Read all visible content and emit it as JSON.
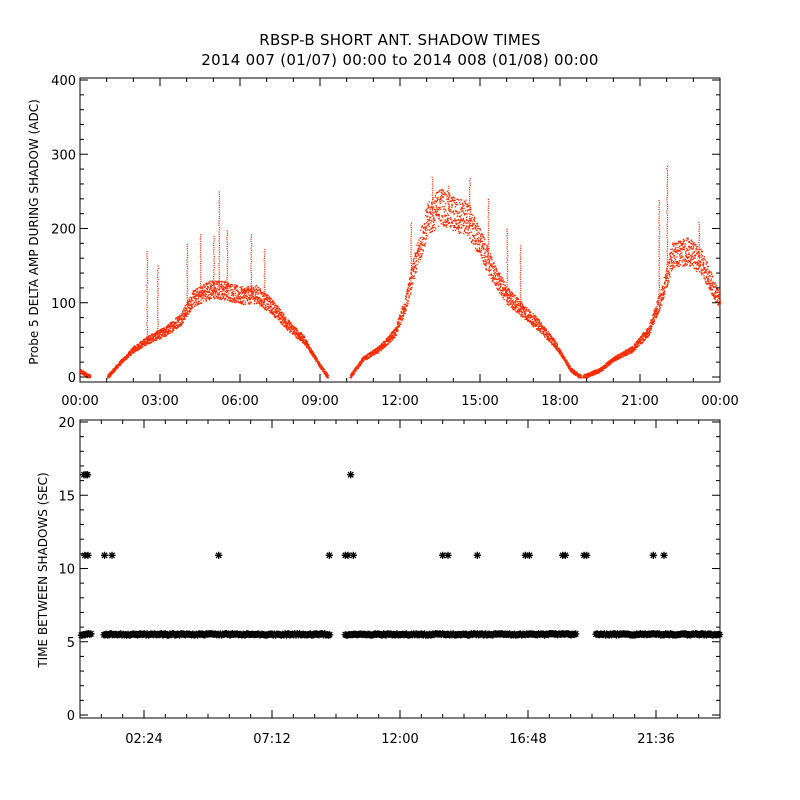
{
  "title_line1": "RBSP-B SHORT ANT. SHADOW TIMES",
  "title_line2": "2014 007 (01/07) 00:00 to 2014 008 (01/08) 00:00",
  "chart_data": [
    {
      "type": "scatter",
      "color": "#ff2a00",
      "ylabel": "Probe 5 DELTA AMP DURING SHADOW (ADC)",
      "xlabel": "",
      "ylim": [
        0,
        400
      ],
      "xlim_hours": [
        0,
        24
      ],
      "yticks": [
        "0",
        "100",
        "200",
        "300",
        "400"
      ],
      "xtick_labels": [
        "00:00",
        "03:00",
        "06:00",
        "09:00",
        "12:00",
        "15:00",
        "18:00",
        "21:00",
        "00:00"
      ],
      "envelope_hours": [
        0.0,
        0.4,
        1.0,
        1.5,
        2.0,
        2.6,
        3.2,
        3.8,
        4.2,
        4.8,
        5.4,
        6.0,
        6.6,
        7.2,
        7.8,
        8.4,
        9.0,
        9.3,
        10.1,
        10.6,
        11.2,
        11.8,
        12.2,
        12.6,
        13.0,
        13.5,
        14.0,
        14.5,
        15.0,
        15.5,
        16.0,
        16.6,
        17.2,
        17.8,
        18.4,
        18.8,
        19.5,
        20.0,
        20.7,
        21.3,
        21.8,
        22.2,
        22.8,
        23.3,
        24.0
      ],
      "envelope_values": [
        8,
        0,
        0,
        20,
        38,
        52,
        62,
        80,
        105,
        118,
        118,
        110,
        112,
        95,
        70,
        50,
        15,
        0,
        0,
        25,
        38,
        60,
        100,
        160,
        210,
        232,
        220,
        215,
        180,
        140,
        110,
        90,
        70,
        45,
        10,
        0,
        10,
        25,
        38,
        62,
        110,
        165,
        170,
        155,
        100
      ],
      "spike_hours": [
        2.5,
        2.9,
        4.0,
        4.5,
        5.0,
        5.2,
        5.5,
        6.4,
        6.9,
        12.4,
        13.2,
        13.8,
        14.6,
        15.3,
        16.0,
        16.5,
        21.7,
        22.0,
        23.2
      ],
      "spike_values": [
        170,
        150,
        180,
        195,
        190,
        250,
        200,
        195,
        175,
        210,
        270,
        260,
        270,
        240,
        200,
        180,
        240,
        285,
        210
      ]
    },
    {
      "type": "scatter",
      "color": "#000000",
      "marker": "*",
      "ylabel": "TIME BETWEEN SHADOWS (SEC)",
      "xlabel": "",
      "ylim": [
        0,
        20
      ],
      "xlim_hours": [
        0,
        24
      ],
      "yticks": [
        "0",
        "5",
        "10",
        "15",
        "20"
      ],
      "xtick_labels": [
        "02:24",
        "07:12",
        "12:00",
        "16:48",
        "21:36"
      ],
      "xtick_hours": [
        2.4,
        7.2,
        12.0,
        16.8,
        21.6
      ],
      "baseline_value": 5.5,
      "baseline_segments": [
        [
          0.05,
          0.45
        ],
        [
          0.9,
          9.4
        ],
        [
          9.95,
          18.6
        ],
        [
          19.35,
          24.0
        ]
      ],
      "points_x": [
        0.15,
        0.22,
        0.28,
        0.18,
        0.3,
        0.92,
        1.2,
        5.2,
        9.35,
        9.95,
        10.05,
        10.15,
        10.25,
        13.6,
        13.8,
        14.9,
        16.7,
        16.85,
        18.1,
        18.2,
        18.9,
        19.0,
        21.5,
        21.9
      ],
      "points_y": [
        16.4,
        16.4,
        16.4,
        10.9,
        10.9,
        10.9,
        10.9,
        10.9,
        10.9,
        10.9,
        10.9,
        16.4,
        10.9,
        10.9,
        10.9,
        10.9,
        10.9,
        10.9,
        10.9,
        10.9,
        10.9,
        10.9,
        10.9,
        10.9
      ]
    }
  ]
}
